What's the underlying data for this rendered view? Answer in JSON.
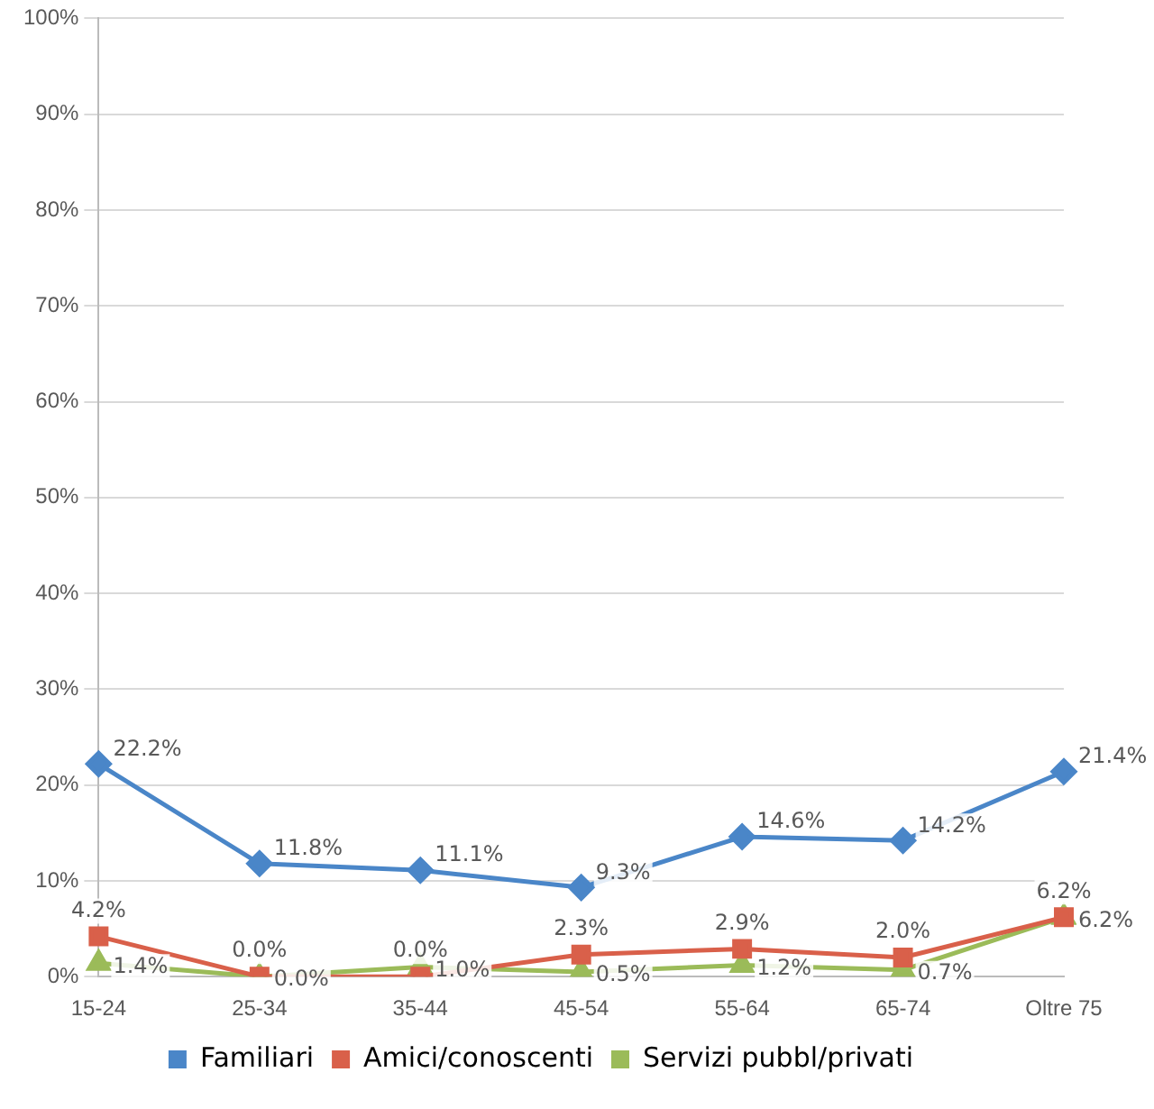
{
  "chart_data": {
    "type": "line",
    "categories": [
      "15-24",
      "25-34",
      "35-44",
      "45-54",
      "55-64",
      "65-74",
      "Oltre 75"
    ],
    "series": [
      {
        "name": "Familiari",
        "color": "#4a86c8",
        "values": [
          22.2,
          11.8,
          11.1,
          9.3,
          14.6,
          14.2,
          21.4
        ],
        "value_labels": [
          "22.2%",
          "11.8%",
          "11.1%",
          "9.3%",
          "14.6%",
          "14.2%",
          "21.4%"
        ],
        "marker": "diamond"
      },
      {
        "name": "Amici/conoscenti",
        "color": "#d9604a",
        "values": [
          4.2,
          0.0,
          0.0,
          2.3,
          2.9,
          2.0,
          6.2
        ],
        "value_labels": [
          "4.2%",
          "0.0%",
          "0.0%",
          "2.3%",
          "2.9%",
          "2.0%",
          "6.2%"
        ],
        "marker": "square"
      },
      {
        "name": "Servizi pubbl/privati",
        "color": "#9bbb59",
        "values": [
          1.4,
          0.0,
          1.0,
          0.5,
          1.2,
          0.7,
          6.2
        ],
        "value_labels": [
          "1.4%",
          "0.0%",
          "1.0%",
          "0.5%",
          "1.2%",
          "0.7%",
          "6.2%"
        ],
        "marker": "triangle"
      }
    ],
    "ylim": [
      0,
      100
    ],
    "yticks": [
      {
        "value": 0,
        "label": "0%"
      },
      {
        "value": 10,
        "label": "10%"
      },
      {
        "value": 20,
        "label": "20%"
      },
      {
        "value": 30,
        "label": "30%"
      },
      {
        "value": 40,
        "label": "40%"
      },
      {
        "value": 50,
        "label": "50%"
      },
      {
        "value": 60,
        "label": "60%"
      },
      {
        "value": 70,
        "label": "70%"
      },
      {
        "value": 80,
        "label": "80%"
      },
      {
        "value": 90,
        "label": "90%"
      },
      {
        "value": 100,
        "label": "100%"
      }
    ],
    "grid": "y",
    "legend": "bottom"
  }
}
